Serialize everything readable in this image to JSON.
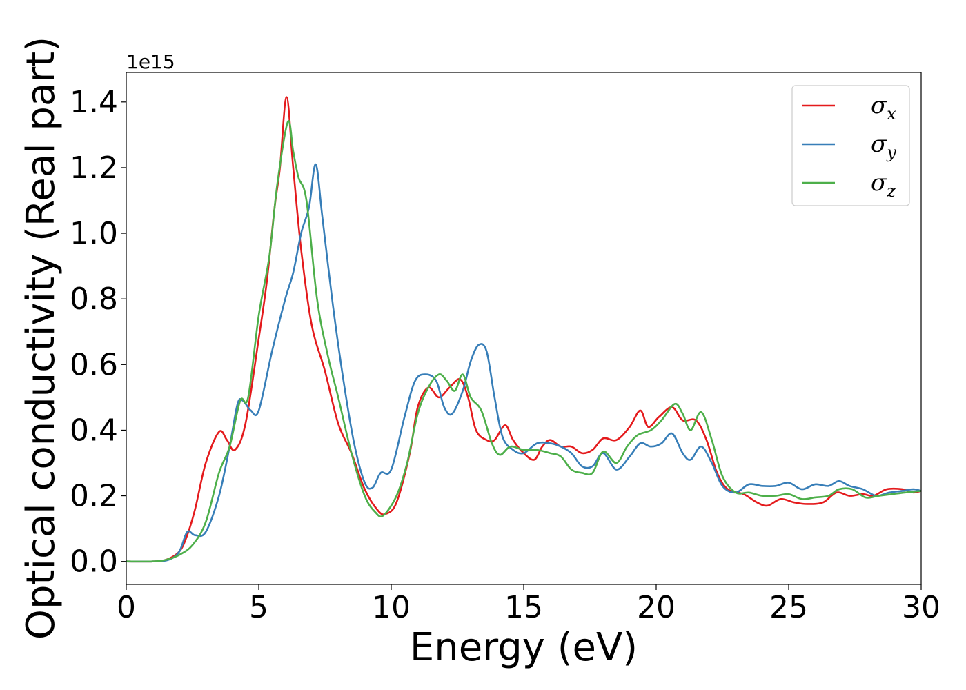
{
  "chart_data": {
    "type": "line",
    "title": "",
    "xlabel": "Energy (eV)",
    "ylabel": "Optical conductivity (Real part)",
    "y_offset_label": "1e15",
    "xlim": [
      0,
      30
    ],
    "ylim": [
      -0.07,
      1.49
    ],
    "x_ticks": [
      0,
      5,
      10,
      15,
      20,
      25,
      30
    ],
    "x_tick_labels": [
      "0",
      "5",
      "10",
      "15",
      "20",
      "25",
      "30"
    ],
    "y_ticks": [
      0.0,
      0.2,
      0.4,
      0.6,
      0.8,
      1.0,
      1.2,
      1.4
    ],
    "y_tick_labels": [
      "0.0",
      "0.2",
      "0.4",
      "0.6",
      "0.8",
      "1.0",
      "1.2",
      "1.4"
    ],
    "grid": false,
    "legend_position": "top-right",
    "series": [
      {
        "name": "σx",
        "legend_base": "σ",
        "legend_sub": "x",
        "color": "#e41a1c",
        "points": [
          [
            0,
            0
          ],
          [
            1,
            0
          ],
          [
            1.5,
            0.005
          ],
          [
            2,
            0.03
          ],
          [
            2.3,
            0.08
          ],
          [
            2.6,
            0.16
          ],
          [
            3,
            0.3
          ],
          [
            3.5,
            0.395
          ],
          [
            3.8,
            0.37
          ],
          [
            4.1,
            0.34
          ],
          [
            4.5,
            0.42
          ],
          [
            5,
            0.68
          ],
          [
            5.3,
            0.85
          ],
          [
            5.6,
            1.08
          ],
          [
            5.8,
            1.2
          ],
          [
            6.05,
            1.415
          ],
          [
            6.3,
            1.2
          ],
          [
            6.6,
            0.95
          ],
          [
            7,
            0.72
          ],
          [
            7.5,
            0.58
          ],
          [
            8,
            0.42
          ],
          [
            8.5,
            0.33
          ],
          [
            9,
            0.22
          ],
          [
            9.5,
            0.155
          ],
          [
            9.8,
            0.145
          ],
          [
            10.2,
            0.18
          ],
          [
            10.7,
            0.33
          ],
          [
            11,
            0.47
          ],
          [
            11.4,
            0.53
          ],
          [
            11.8,
            0.5
          ],
          [
            12.2,
            0.53
          ],
          [
            12.6,
            0.555
          ],
          [
            12.9,
            0.5
          ],
          [
            13.2,
            0.4
          ],
          [
            13.6,
            0.37
          ],
          [
            13.9,
            0.37
          ],
          [
            14.3,
            0.415
          ],
          [
            14.6,
            0.37
          ],
          [
            15,
            0.33
          ],
          [
            15.4,
            0.31
          ],
          [
            15.7,
            0.35
          ],
          [
            16,
            0.37
          ],
          [
            16.4,
            0.35
          ],
          [
            16.8,
            0.35
          ],
          [
            17.2,
            0.33
          ],
          [
            17.6,
            0.34
          ],
          [
            18,
            0.375
          ],
          [
            18.5,
            0.37
          ],
          [
            19,
            0.41
          ],
          [
            19.4,
            0.46
          ],
          [
            19.7,
            0.41
          ],
          [
            20.1,
            0.44
          ],
          [
            20.6,
            0.47
          ],
          [
            21,
            0.43
          ],
          [
            21.5,
            0.43
          ],
          [
            21.9,
            0.37
          ],
          [
            22.3,
            0.27
          ],
          [
            22.7,
            0.22
          ],
          [
            23.3,
            0.205
          ],
          [
            23.8,
            0.18
          ],
          [
            24.2,
            0.17
          ],
          [
            24.7,
            0.19
          ],
          [
            25.2,
            0.18
          ],
          [
            25.7,
            0.175
          ],
          [
            26.3,
            0.18
          ],
          [
            26.8,
            0.21
          ],
          [
            27.3,
            0.2
          ],
          [
            27.8,
            0.205
          ],
          [
            28.2,
            0.2
          ],
          [
            28.7,
            0.22
          ],
          [
            29.3,
            0.22
          ],
          [
            29.7,
            0.21
          ],
          [
            30,
            0.215
          ]
        ]
      },
      {
        "name": "σy",
        "legend_base": "σ",
        "legend_sub": "y",
        "color": "#377eb8",
        "points": [
          [
            0,
            0
          ],
          [
            1,
            0
          ],
          [
            1.6,
            0.005
          ],
          [
            2,
            0.03
          ],
          [
            2.3,
            0.09
          ],
          [
            2.6,
            0.08
          ],
          [
            3,
            0.09
          ],
          [
            3.5,
            0.2
          ],
          [
            3.9,
            0.35
          ],
          [
            4.2,
            0.48
          ],
          [
            4.4,
            0.49
          ],
          [
            4.7,
            0.46
          ],
          [
            5,
            0.46
          ],
          [
            5.5,
            0.64
          ],
          [
            6,
            0.8
          ],
          [
            6.3,
            0.88
          ],
          [
            6.6,
            1.0
          ],
          [
            6.9,
            1.08
          ],
          [
            7.15,
            1.21
          ],
          [
            7.4,
            1.05
          ],
          [
            7.8,
            0.78
          ],
          [
            8.2,
            0.55
          ],
          [
            8.6,
            0.36
          ],
          [
            9,
            0.24
          ],
          [
            9.3,
            0.225
          ],
          [
            9.6,
            0.27
          ],
          [
            10,
            0.28
          ],
          [
            10.5,
            0.44
          ],
          [
            10.9,
            0.55
          ],
          [
            11.3,
            0.57
          ],
          [
            11.7,
            0.55
          ],
          [
            12,
            0.47
          ],
          [
            12.3,
            0.45
          ],
          [
            12.7,
            0.52
          ],
          [
            13,
            0.61
          ],
          [
            13.3,
            0.66
          ],
          [
            13.6,
            0.64
          ],
          [
            13.9,
            0.5
          ],
          [
            14.2,
            0.38
          ],
          [
            14.6,
            0.34
          ],
          [
            15,
            0.33
          ],
          [
            15.5,
            0.36
          ],
          [
            16,
            0.36
          ],
          [
            16.4,
            0.35
          ],
          [
            16.8,
            0.33
          ],
          [
            17.2,
            0.29
          ],
          [
            17.6,
            0.29
          ],
          [
            18,
            0.33
          ],
          [
            18.5,
            0.28
          ],
          [
            19,
            0.32
          ],
          [
            19.4,
            0.36
          ],
          [
            19.8,
            0.35
          ],
          [
            20.2,
            0.36
          ],
          [
            20.6,
            0.39
          ],
          [
            21,
            0.33
          ],
          [
            21.3,
            0.31
          ],
          [
            21.7,
            0.35
          ],
          [
            22.1,
            0.3
          ],
          [
            22.5,
            0.23
          ],
          [
            23,
            0.21
          ],
          [
            23.5,
            0.235
          ],
          [
            24,
            0.23
          ],
          [
            24.5,
            0.23
          ],
          [
            25,
            0.24
          ],
          [
            25.5,
            0.22
          ],
          [
            26,
            0.235
          ],
          [
            26.5,
            0.23
          ],
          [
            26.9,
            0.245
          ],
          [
            27.3,
            0.23
          ],
          [
            27.8,
            0.22
          ],
          [
            28.3,
            0.2
          ],
          [
            28.8,
            0.21
          ],
          [
            29.3,
            0.215
          ],
          [
            29.7,
            0.22
          ],
          [
            30,
            0.215
          ]
        ]
      },
      {
        "name": "σz",
        "legend_base": "σ",
        "legend_sub": "z",
        "color": "#4daf4a",
        "points": [
          [
            0,
            0
          ],
          [
            1,
            0
          ],
          [
            1.5,
            0.005
          ],
          [
            2,
            0.02
          ],
          [
            2.5,
            0.05
          ],
          [
            3,
            0.12
          ],
          [
            3.5,
            0.27
          ],
          [
            3.9,
            0.35
          ],
          [
            4.3,
            0.49
          ],
          [
            4.6,
            0.5
          ],
          [
            5,
            0.75
          ],
          [
            5.4,
            0.93
          ],
          [
            5.7,
            1.15
          ],
          [
            6.1,
            1.34
          ],
          [
            6.3,
            1.25
          ],
          [
            6.5,
            1.17
          ],
          [
            6.8,
            1.1
          ],
          [
            7.2,
            0.8
          ],
          [
            7.6,
            0.63
          ],
          [
            8,
            0.5
          ],
          [
            8.5,
            0.33
          ],
          [
            9,
            0.2
          ],
          [
            9.4,
            0.15
          ],
          [
            9.7,
            0.14
          ],
          [
            10.2,
            0.2
          ],
          [
            10.6,
            0.3
          ],
          [
            11,
            0.45
          ],
          [
            11.4,
            0.53
          ],
          [
            11.8,
            0.57
          ],
          [
            12.1,
            0.55
          ],
          [
            12.4,
            0.52
          ],
          [
            12.7,
            0.57
          ],
          [
            13,
            0.5
          ],
          [
            13.4,
            0.46
          ],
          [
            13.8,
            0.36
          ],
          [
            14.1,
            0.325
          ],
          [
            14.5,
            0.35
          ],
          [
            15,
            0.34
          ],
          [
            15.5,
            0.34
          ],
          [
            16,
            0.33
          ],
          [
            16.4,
            0.32
          ],
          [
            16.8,
            0.28
          ],
          [
            17.2,
            0.27
          ],
          [
            17.6,
            0.27
          ],
          [
            18,
            0.335
          ],
          [
            18.5,
            0.3
          ],
          [
            18.9,
            0.35
          ],
          [
            19.3,
            0.385
          ],
          [
            19.8,
            0.4
          ],
          [
            20.2,
            0.43
          ],
          [
            20.7,
            0.48
          ],
          [
            21,
            0.45
          ],
          [
            21.3,
            0.4
          ],
          [
            21.7,
            0.455
          ],
          [
            22.1,
            0.37
          ],
          [
            22.5,
            0.26
          ],
          [
            23,
            0.21
          ],
          [
            23.5,
            0.21
          ],
          [
            24,
            0.2
          ],
          [
            24.5,
            0.2
          ],
          [
            25,
            0.205
          ],
          [
            25.5,
            0.19
          ],
          [
            26,
            0.195
          ],
          [
            26.5,
            0.2
          ],
          [
            26.9,
            0.22
          ],
          [
            27.4,
            0.22
          ],
          [
            27.9,
            0.195
          ],
          [
            28.4,
            0.2
          ],
          [
            28.9,
            0.205
          ],
          [
            29.4,
            0.21
          ],
          [
            30,
            0.215
          ]
        ]
      }
    ]
  }
}
